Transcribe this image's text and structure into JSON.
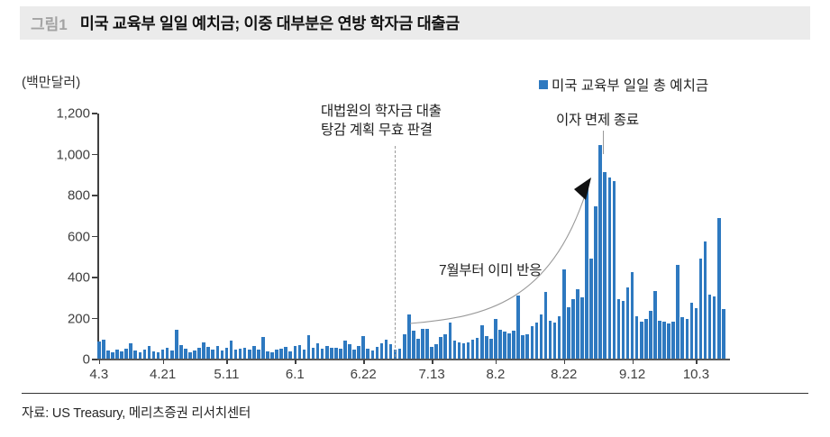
{
  "figure": {
    "tag": "그림1",
    "title": "미국 교육부 일일 예치금; 이중 대부분은 연방 학자금 대출금"
  },
  "chart_data": {
    "type": "bar",
    "title": "미국 교육부 일일 총 예치금",
    "unit_label": "(백만달러)",
    "ylabel": "",
    "xlabel": "",
    "ylim": [
      0,
      1200
    ],
    "grid": false,
    "legend_position": "top-right",
    "bar_color": "#2e79c0",
    "y_ticks": [
      0,
      200,
      400,
      600,
      800,
      1000,
      1200
    ],
    "y_tick_labels": [
      "0",
      "200",
      "400",
      "600",
      "800",
      "1,000",
      "1,200"
    ],
    "x_tick_labels": [
      "4.3",
      "4.21",
      "5.11",
      "6.1",
      "6.22",
      "7.13",
      "8.2",
      "8.22",
      "9.12",
      "10.3"
    ],
    "x_tick_indices": [
      0,
      14,
      28,
      43,
      58,
      73,
      87,
      102,
      117,
      131
    ],
    "values": [
      85,
      92,
      38,
      30,
      42,
      35,
      50,
      75,
      38,
      30,
      46,
      62,
      35,
      30,
      45,
      52,
      38,
      140,
      65,
      48,
      32,
      38,
      55,
      78,
      58,
      45,
      62,
      40,
      55,
      88,
      45,
      50,
      55,
      45,
      60,
      45,
      105,
      35,
      30,
      42,
      48,
      58,
      35,
      60,
      68,
      45,
      115,
      55,
      75,
      48,
      60,
      52,
      55,
      48,
      88,
      70,
      42,
      60,
      110,
      48,
      40,
      57,
      75,
      92,
      70,
      44,
      48,
      119,
      216,
      136,
      97,
      145,
      145,
      57,
      70,
      106,
      119,
      176,
      88,
      79,
      75,
      79,
      92,
      101,
      163,
      110,
      97,
      194,
      141,
      132,
      123,
      136,
      310,
      114,
      119,
      158,
      176,
      216,
      325,
      185,
      176,
      208,
      436,
      250,
      290,
      340,
      300,
      843,
      489,
      744,
      1044,
      908,
      884,
      868,
      289,
      282,
      348,
      422,
      207,
      180,
      194,
      233,
      330,
      185,
      180,
      172,
      180,
      458,
      202,
      193,
      273,
      246,
      488,
      570,
      313,
      304,
      685,
      240
    ]
  },
  "legend": {
    "label": "미국 교육부 일일 총 예치금",
    "color": "#2e79c0"
  },
  "annotations": {
    "ruling_line1": "대법원의 학자금 대출",
    "ruling_line2": "탕감 계획 무효 판결",
    "interest_waiver_end": "이자 면제 종료",
    "july_reaction": "7월부터 이미 반응"
  },
  "source": "자료: US Treasury,  메리츠증권  리서치센터"
}
